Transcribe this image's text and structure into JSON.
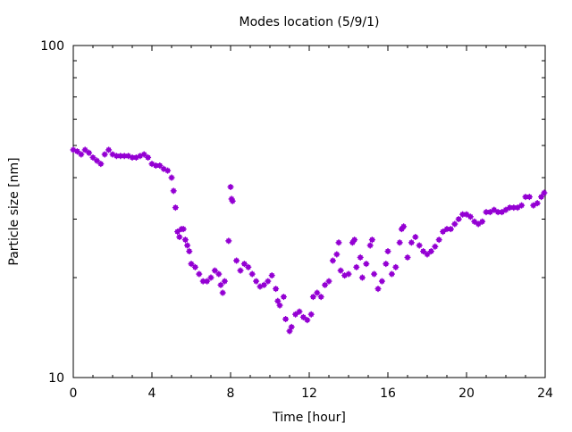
{
  "chart_data": {
    "type": "scatter",
    "title": "Modes location (5/9/1)",
    "xlabel": "Time [hour]",
    "ylabel": "Particle size [nm]",
    "xlim": [
      0,
      24
    ],
    "ylim": [
      10,
      100
    ],
    "yscale": "log",
    "xticks": [
      0,
      4,
      8,
      12,
      16,
      20,
      24
    ],
    "xtick_labels": [
      "0",
      "4",
      "8",
      "12",
      "16",
      "20",
      "24"
    ],
    "yticks": [
      10,
      100
    ],
    "ytick_labels": [
      "10",
      "100"
    ],
    "grid": false,
    "marker_color": "#9400d3",
    "series": [
      {
        "name": "modes",
        "x": [
          0.0,
          0.2,
          0.4,
          0.6,
          0.8,
          1.0,
          1.2,
          1.4,
          1.6,
          1.8,
          2.0,
          2.2,
          2.4,
          2.6,
          2.8,
          3.0,
          3.2,
          3.4,
          3.6,
          3.8,
          4.0,
          4.2,
          4.4,
          4.6,
          4.8,
          5.0,
          5.1,
          5.2,
          5.3,
          5.4,
          5.5,
          5.6,
          5.7,
          5.8,
          5.9,
          6.0,
          6.2,
          6.4,
          6.6,
          6.8,
          7.0,
          7.2,
          7.4,
          7.5,
          7.6,
          7.7,
          7.9,
          8.0,
          8.05,
          8.1,
          8.3,
          8.5,
          8.7,
          8.9,
          9.1,
          9.3,
          9.5,
          9.7,
          9.9,
          10.1,
          10.3,
          10.4,
          10.5,
          10.7,
          10.8,
          11.0,
          11.1,
          11.3,
          11.5,
          11.7,
          11.9,
          12.1,
          12.2,
          12.4,
          12.6,
          12.8,
          13.0,
          13.2,
          13.4,
          13.5,
          13.6,
          13.8,
          14.0,
          14.2,
          14.3,
          14.4,
          14.6,
          14.7,
          14.9,
          15.1,
          15.2,
          15.3,
          15.5,
          15.7,
          15.9,
          16.0,
          16.2,
          16.4,
          16.6,
          16.7,
          16.8,
          17.0,
          17.2,
          17.4,
          17.6,
          17.8,
          18.0,
          18.2,
          18.4,
          18.6,
          18.8,
          19.0,
          19.2,
          19.4,
          19.6,
          19.8,
          20.0,
          20.2,
          20.4,
          20.6,
          20.8,
          21.0,
          21.2,
          21.4,
          21.6,
          21.8,
          22.0,
          22.2,
          22.4,
          22.6,
          22.8,
          23.0,
          23.2,
          23.4,
          23.6,
          23.8,
          23.95
        ],
        "y": [
          48.5,
          48,
          47,
          48.5,
          47.5,
          46,
          45,
          44,
          47,
          48.5,
          47,
          46.5,
          46.5,
          46.5,
          46.5,
          46,
          46,
          46.5,
          47,
          46,
          44,
          43.5,
          43.5,
          42.5,
          42,
          40,
          36.5,
          32.5,
          27.5,
          26.5,
          28,
          28,
          26,
          25,
          24,
          22,
          21.5,
          20.5,
          19.5,
          19.5,
          20,
          21,
          20.5,
          19,
          18,
          19.5,
          25.8,
          37.5,
          34.5,
          34,
          22.5,
          21,
          22,
          21.5,
          20.5,
          19.5,
          18.8,
          19,
          19.5,
          20.3,
          18.5,
          17,
          16.5,
          17.5,
          15,
          13.8,
          14.2,
          15.5,
          15.8,
          15.2,
          14.9,
          15.5,
          17.5,
          18,
          17.5,
          19,
          19.5,
          22.5,
          23.5,
          25.5,
          21,
          20.3,
          20.5,
          25.5,
          26,
          21.5,
          23,
          20,
          22,
          25,
          26,
          20.5,
          18.5,
          19.5,
          22,
          24,
          20.5,
          21.5,
          25.5,
          28,
          28.5,
          23,
          25.5,
          26.5,
          25,
          24,
          23.5,
          24,
          24.8,
          26,
          27.5,
          28,
          28,
          29,
          30,
          31,
          31,
          30.5,
          29.5,
          29,
          29.5,
          31.5,
          31.5,
          32,
          31.5,
          31.5,
          32,
          32.5,
          32.5,
          32.5,
          33,
          35,
          35,
          33,
          33.5,
          35,
          36
        ]
      }
    ]
  }
}
